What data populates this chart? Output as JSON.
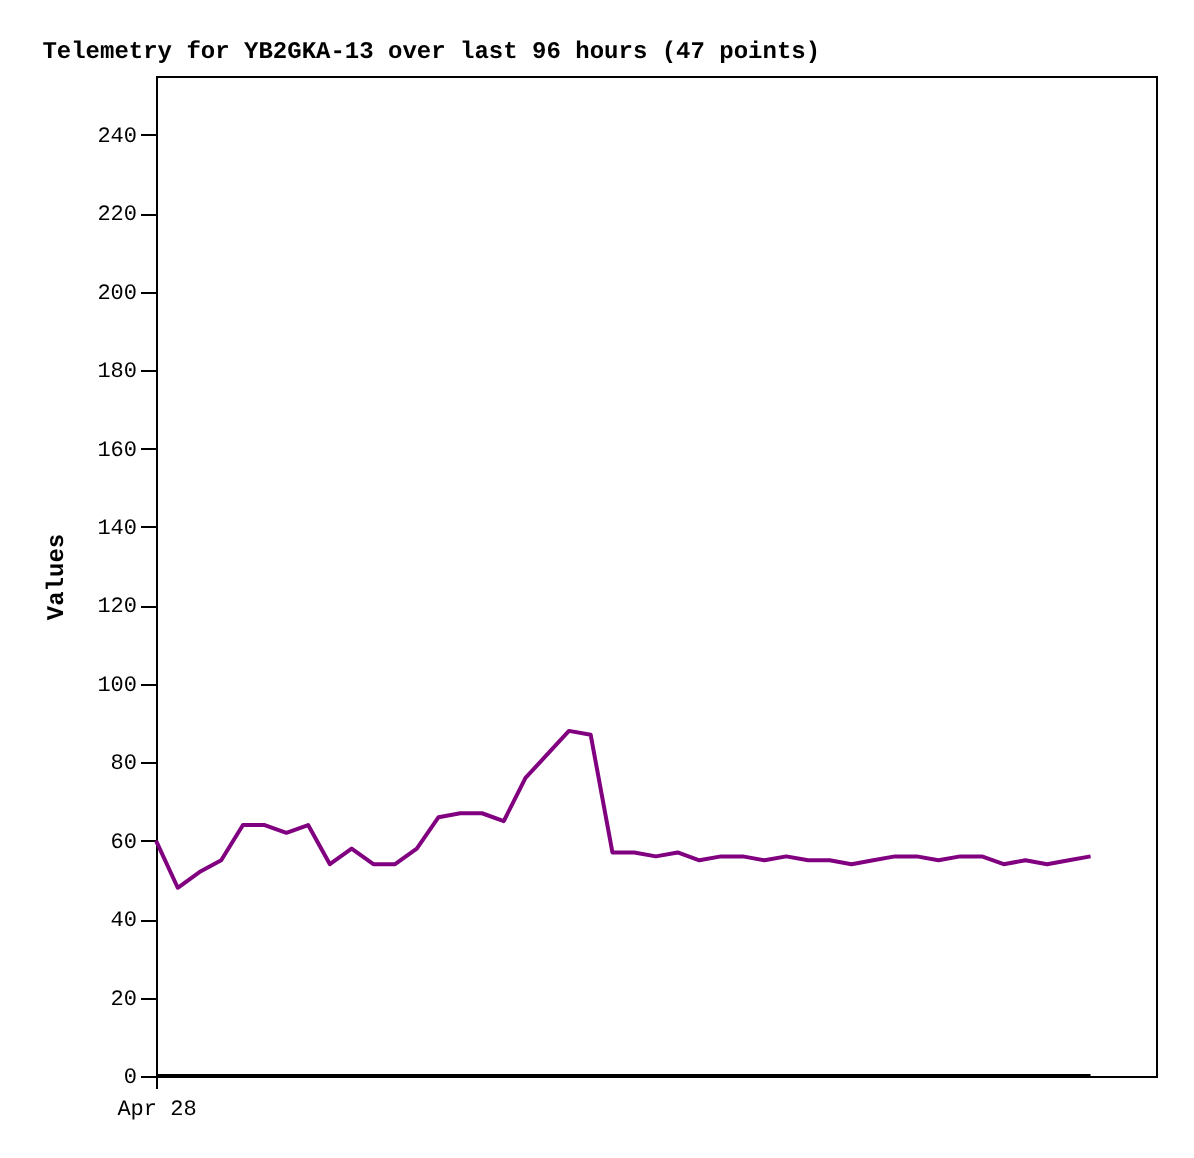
{
  "chart_data": {
    "type": "line",
    "title": "Telemetry for YB2GKA-13 over last 96 hours (47 points)",
    "ylabel": "Values",
    "categories": [
      "Apr 28",
      null,
      null,
      null,
      null,
      null,
      null,
      null,
      null,
      null,
      null,
      null,
      null,
      null,
      null,
      null,
      null,
      null,
      null,
      null,
      null,
      null,
      null,
      null,
      null,
      null,
      null,
      null,
      null,
      null,
      null,
      null,
      null,
      null,
      null,
      null,
      null,
      null,
      null,
      null,
      null,
      null,
      null,
      null
    ],
    "ylim": [
      0,
      255
    ],
    "yticks": [
      0,
      20,
      40,
      60,
      80,
      100,
      120,
      140,
      160,
      180,
      200,
      220,
      240
    ],
    "grid": false,
    "marker": "none",
    "line_style": "solid",
    "series": [
      {
        "color": "#800080",
        "values": [
          60,
          48,
          52,
          55,
          64,
          64,
          62,
          64,
          54,
          58,
          54,
          54,
          58,
          66,
          67,
          67,
          65,
          76,
          82,
          88,
          87,
          57,
          57,
          56,
          57,
          55,
          56,
          56,
          55,
          56,
          55,
          55,
          54,
          55,
          56,
          56,
          55,
          56,
          56,
          54,
          55,
          54,
          55,
          56
        ]
      },
      {
        "color": "#000000",
        "values": [
          0,
          0,
          0,
          0,
          0,
          0,
          0,
          0,
          0,
          0,
          0,
          0,
          0,
          0,
          0,
          0,
          0,
          0,
          0,
          0,
          0,
          0,
          0,
          0,
          0,
          0,
          0,
          0,
          0,
          0,
          0,
          0,
          0,
          0,
          0,
          0,
          0,
          0,
          0,
          0,
          0,
          0,
          0,
          0
        ]
      }
    ]
  }
}
